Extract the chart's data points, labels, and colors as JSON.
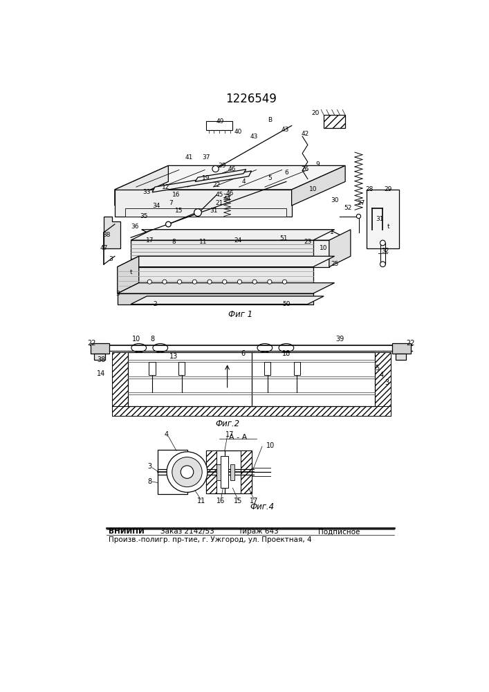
{
  "title": "1226549",
  "background_color": "#ffffff",
  "fig1_label": "Фиг 1",
  "fig2_label": "Фиг.2",
  "fig4_label": "Фиг.4",
  "section_label": "A - A",
  "footer_bold": "ВНИИПИ",
  "footer_order": "Заказ 2142/53",
  "footer_tirazh": "Тираж 643",
  "footer_podp": "Подписное",
  "footer_line2": "Произв.-полигр. пр-тие, г. Ужгород, ул. Проектная, 4",
  "lw_main": 0.9,
  "lw_thin": 0.6,
  "lw_thick": 1.2
}
